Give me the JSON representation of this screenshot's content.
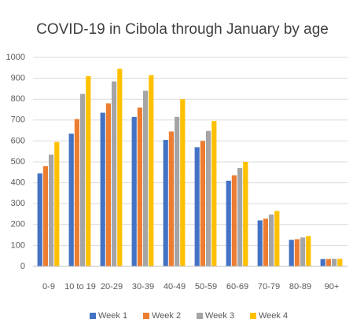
{
  "chart_data": {
    "type": "bar",
    "title": "COVID-19 in Cibola through January by age",
    "categories": [
      "0-9",
      "10 to 19",
      "20-29",
      "30-39",
      "40-49",
      "50-59",
      "60-69",
      "70-79",
      "80-89",
      "90+"
    ],
    "series": [
      {
        "name": "Week 1",
        "color": "#4472c4",
        "values": [
          445,
          635,
          735,
          715,
          605,
          570,
          410,
          220,
          127,
          35
        ]
      },
      {
        "name": "Week 2",
        "color": "#ed7d31",
        "values": [
          480,
          705,
          780,
          760,
          645,
          600,
          435,
          228,
          130,
          35
        ]
      },
      {
        "name": "Week 3",
        "color": "#a5a5a5",
        "values": [
          535,
          825,
          885,
          840,
          715,
          648,
          470,
          248,
          138,
          36
        ]
      },
      {
        "name": "Week 4",
        "color": "#ffc000",
        "values": [
          595,
          910,
          945,
          915,
          800,
          695,
          500,
          265,
          145,
          36
        ]
      }
    ],
    "ylim": [
      0,
      1000
    ],
    "yticks": [
      0,
      100,
      200,
      300,
      400,
      500,
      600,
      700,
      800,
      900,
      1000
    ],
    "grid": true,
    "legend": "bottom"
  }
}
